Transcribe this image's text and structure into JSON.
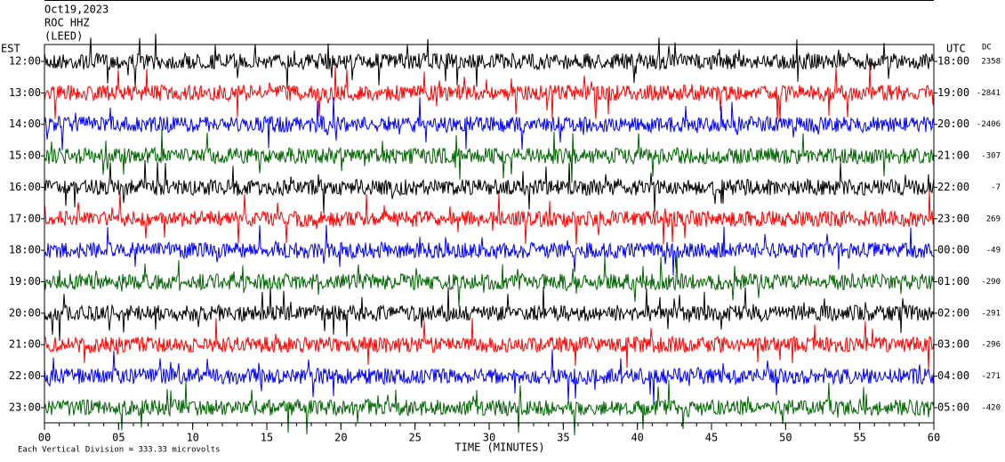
{
  "chart_data": {
    "type": "helicorder",
    "title_lines": [
      "Oct19,2023",
      "ROC HHZ",
      "(LEED)"
    ],
    "left_axis_label": "EST",
    "right_axis_label": "UTC",
    "dc_label": "DC",
    "x_label": "TIME (MINUTES)",
    "footnote": "Each Vertical Division =  333.33 microvolts",
    "xlim": [
      0,
      60
    ],
    "xticks": [
      {
        "value": 0,
        "label": "00"
      },
      {
        "value": 5,
        "label": "05"
      },
      {
        "value": 10,
        "label": "10"
      },
      {
        "value": 15,
        "label": "15"
      },
      {
        "value": 20,
        "label": "20"
      },
      {
        "value": 25,
        "label": "25"
      },
      {
        "value": 30,
        "label": "30"
      },
      {
        "value": 35,
        "label": "35"
      },
      {
        "value": 40,
        "label": "40"
      },
      {
        "value": 45,
        "label": "45"
      },
      {
        "value": 50,
        "label": "50"
      },
      {
        "value": 55,
        "label": "55"
      },
      {
        "value": 60,
        "label": "60"
      }
    ],
    "rows": [
      {
        "est": "12:00",
        "utc": "18:00",
        "dc": "2358",
        "color": "#000000"
      },
      {
        "est": "13:00",
        "utc": "19:00",
        "dc": "-2841",
        "color": "#ff0000"
      },
      {
        "est": "14:00",
        "utc": "20:00",
        "dc": "-2406",
        "color": "#0000ff"
      },
      {
        "est": "15:00",
        "utc": "21:00",
        "dc": "-307",
        "color": "#006400"
      },
      {
        "est": "16:00",
        "utc": "22:00",
        "dc": "-7",
        "color": "#000000"
      },
      {
        "est": "17:00",
        "utc": "23:00",
        "dc": "269",
        "color": "#ff0000"
      },
      {
        "est": "18:00",
        "utc": "00:00",
        "dc": "-49",
        "color": "#0000ff"
      },
      {
        "est": "19:00",
        "utc": "01:00",
        "dc": "-290",
        "color": "#006400"
      },
      {
        "est": "20:00",
        "utc": "02:00",
        "dc": "-291",
        "color": "#000000"
      },
      {
        "est": "21:00",
        "utc": "03:00",
        "dc": "-296",
        "color": "#ff0000"
      },
      {
        "est": "22:00",
        "utc": "04:00",
        "dc": "-271",
        "color": "#0000ff"
      },
      {
        "est": "23:00",
        "utc": "05:00",
        "dc": "-420",
        "color": "#006400"
      }
    ]
  }
}
